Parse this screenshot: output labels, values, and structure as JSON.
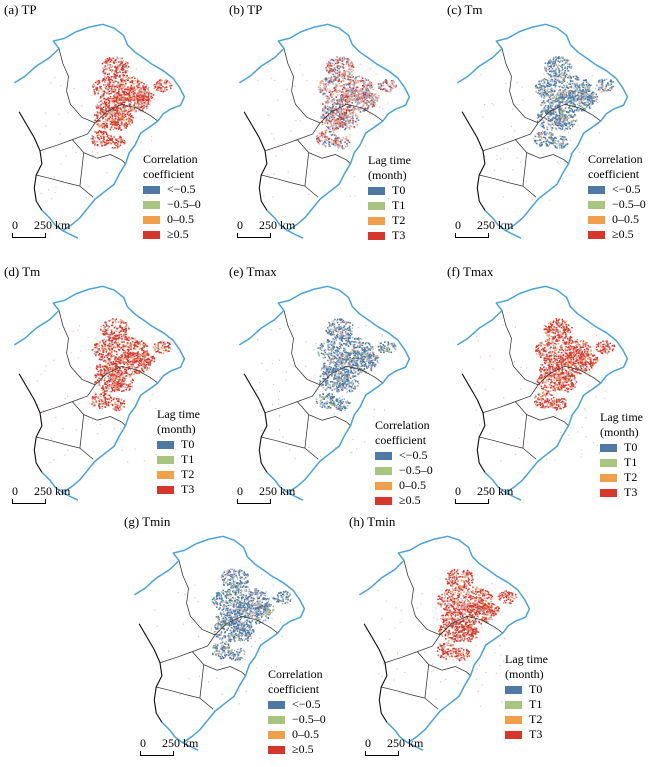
{
  "colors": {
    "coast": "#4aa3d9",
    "boundary": "#333333",
    "west_border": "#111111",
    "blue": "#4e79a7",
    "green": "#a9c47f",
    "orange": "#f0a04b",
    "red": "#d7362b",
    "light_red": "#eda08f",
    "light_blue": "#9ab3cf"
  },
  "scale_bar": {
    "zero": "0",
    "distance": "250 km"
  },
  "legends": {
    "correlation": {
      "title_line1": "Correlation",
      "title_line2": "coefficient",
      "items": [
        {
          "label": "<−0.5",
          "color": "#4e79a7"
        },
        {
          "label": "−0.5–0",
          "color": "#a9c47f"
        },
        {
          "label": "0–0.5",
          "color": "#f0a04b"
        },
        {
          "label": "≥0.5",
          "color": "#d7362b"
        }
      ]
    },
    "lag": {
      "title_line1": "Lag time",
      "title_line2": "(month)",
      "items": [
        {
          "label": "T0",
          "color": "#4e79a7"
        },
        {
          "label": "T1",
          "color": "#a9c47f"
        },
        {
          "label": "T2",
          "color": "#f0a04b"
        },
        {
          "label": "T3",
          "color": "#d7362b"
        }
      ]
    }
  },
  "panels": [
    {
      "title": "(a) TP",
      "legend": "correlation",
      "pattern": "red"
    },
    {
      "title": "(b) TP",
      "legend": "lag",
      "pattern": "mixed"
    },
    {
      "title": "(c) Tm",
      "legend": "correlation",
      "pattern": "blue"
    },
    {
      "title": "(d) Tm",
      "legend": "lag",
      "pattern": "red"
    },
    {
      "title": "(e) Tmax",
      "legend": "correlation",
      "pattern": "blue"
    },
    {
      "title": "(f) Tmax",
      "legend": "lag",
      "pattern": "red"
    },
    {
      "title": "(g) Tmin",
      "legend": "correlation",
      "pattern": "blue"
    },
    {
      "title": "(h) Tmin",
      "legend": "lag",
      "pattern": "red"
    }
  ]
}
